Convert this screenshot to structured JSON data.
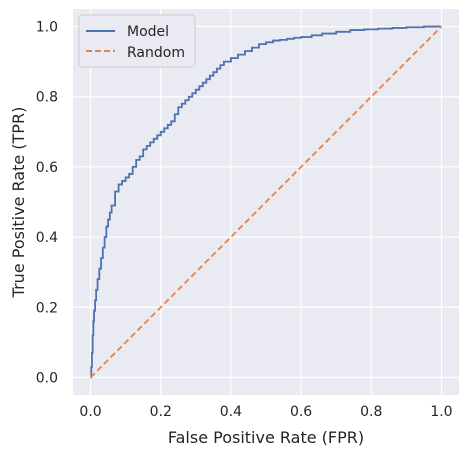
{
  "chart_data": {
    "type": "line",
    "title": "",
    "xlabel": "False Positive Rate (FPR)",
    "ylabel": "True Positive Rate (TPR)",
    "xlim": [
      -0.05,
      1.05
    ],
    "ylim": [
      -0.05,
      1.05
    ],
    "x_ticks": [
      0.0,
      0.2,
      0.4,
      0.6,
      0.8,
      1.0
    ],
    "y_ticks": [
      0.0,
      0.2,
      0.4,
      0.6,
      0.8,
      1.0
    ],
    "x_tick_labels": [
      "0.0",
      "0.2",
      "0.4",
      "0.6",
      "0.8",
      "1.0"
    ],
    "y_tick_labels": [
      "0.0",
      "0.2",
      "0.4",
      "0.6",
      "0.8",
      "1.0"
    ],
    "grid": true,
    "legend_position": "top-left",
    "background_color": "#eaeaf2",
    "series": [
      {
        "name": "Model",
        "color": "#4c72b0",
        "style": "solid",
        "step": true,
        "x": [
          0.0,
          0.002,
          0.004,
          0.006,
          0.008,
          0.01,
          0.013,
          0.016,
          0.02,
          0.025,
          0.03,
          0.035,
          0.04,
          0.045,
          0.05,
          0.055,
          0.06,
          0.07,
          0.08,
          0.09,
          0.1,
          0.11,
          0.12,
          0.13,
          0.14,
          0.15,
          0.16,
          0.17,
          0.18,
          0.19,
          0.2,
          0.21,
          0.22,
          0.23,
          0.24,
          0.25,
          0.26,
          0.27,
          0.28,
          0.29,
          0.3,
          0.31,
          0.32,
          0.33,
          0.34,
          0.35,
          0.36,
          0.37,
          0.38,
          0.39,
          0.4,
          0.42,
          0.44,
          0.46,
          0.48,
          0.5,
          0.52,
          0.54,
          0.56,
          0.58,
          0.6,
          0.63,
          0.66,
          0.7,
          0.74,
          0.78,
          0.82,
          0.86,
          0.9,
          0.95,
          1.0
        ],
        "y": [
          0.0,
          0.03,
          0.07,
          0.12,
          0.16,
          0.19,
          0.22,
          0.25,
          0.28,
          0.31,
          0.34,
          0.37,
          0.4,
          0.43,
          0.45,
          0.47,
          0.49,
          0.53,
          0.55,
          0.56,
          0.57,
          0.58,
          0.6,
          0.62,
          0.63,
          0.65,
          0.66,
          0.67,
          0.68,
          0.69,
          0.7,
          0.71,
          0.72,
          0.73,
          0.75,
          0.77,
          0.78,
          0.79,
          0.8,
          0.81,
          0.82,
          0.83,
          0.84,
          0.85,
          0.86,
          0.87,
          0.88,
          0.89,
          0.9,
          0.9,
          0.91,
          0.92,
          0.93,
          0.94,
          0.95,
          0.955,
          0.96,
          0.962,
          0.965,
          0.968,
          0.97,
          0.975,
          0.98,
          0.985,
          0.99,
          0.992,
          0.994,
          0.996,
          0.998,
          1.0,
          1.0
        ]
      },
      {
        "name": "Random",
        "color": "#dd8452",
        "style": "dashed",
        "x": [
          0.0,
          1.0
        ],
        "y": [
          0.0,
          1.0
        ]
      }
    ]
  }
}
